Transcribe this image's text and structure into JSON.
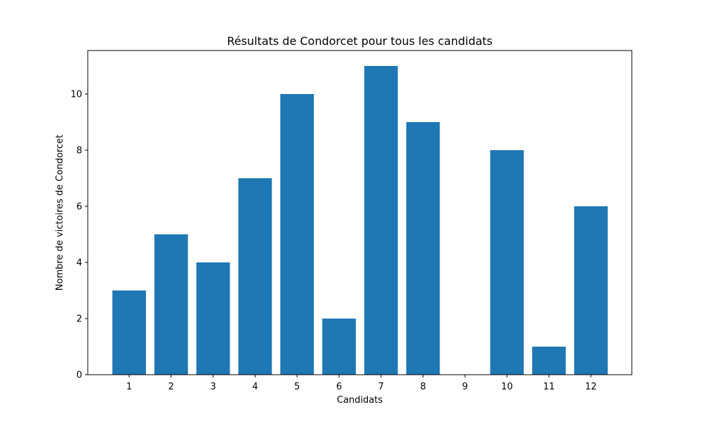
{
  "chart_data": {
    "type": "bar",
    "title": "Résultats de Condorcet pour tous les candidats",
    "xlabel": "Candidats",
    "ylabel": "Nombre de victoires de Condorcet",
    "categories": [
      "1",
      "2",
      "3",
      "4",
      "5",
      "6",
      "7",
      "8",
      "9",
      "10",
      "11",
      "12"
    ],
    "values": [
      3,
      5,
      4,
      7,
      10,
      2,
      11,
      9,
      0,
      8,
      1,
      6
    ],
    "ylim": [
      0,
      11.55
    ],
    "yticks": [
      "0",
      "2",
      "4",
      "6",
      "8",
      "10"
    ],
    "grid": false,
    "bar_color": "#1f77b4"
  }
}
